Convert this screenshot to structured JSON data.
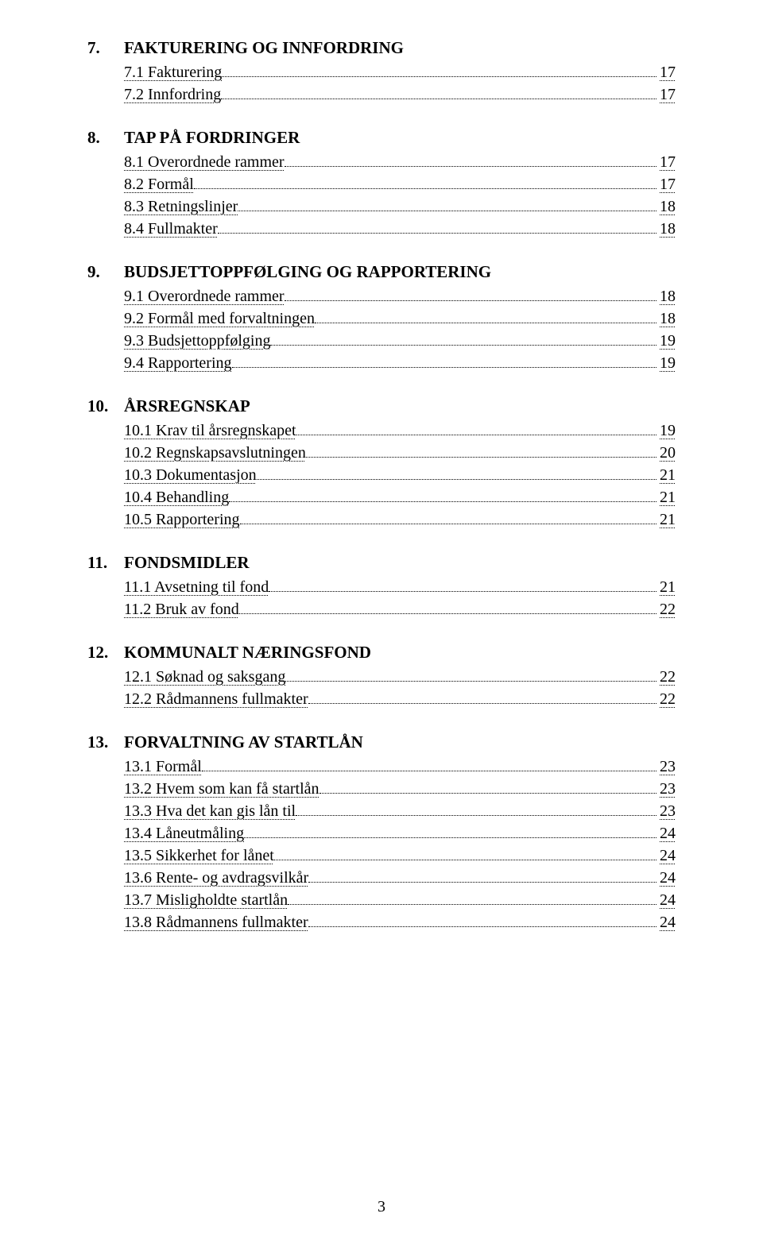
{
  "page_number": "3",
  "colors": {
    "background": "#ffffff",
    "text": "#000000",
    "leader": "#000000"
  },
  "typography": {
    "font_family": "Times New Roman",
    "heading_size_pt": 16,
    "entry_size_pt": 15,
    "heading_weight": "bold"
  },
  "sections": [
    {
      "num": "7.",
      "title": "FAKTURERING OG INNFORDRING",
      "entries": [
        {
          "label": "7.1 Fakturering",
          "page": "17"
        },
        {
          "label": "7.2 Innfordring",
          "page": "17"
        }
      ]
    },
    {
      "num": "8.",
      "title": "TAP PÅ FORDRINGER",
      "entries": [
        {
          "label": "8.1 Overordnede rammer",
          "page": "17"
        },
        {
          "label": "8.2 Formål",
          "page": "17"
        },
        {
          "label": "8.3 Retningslinjer",
          "page": "18"
        },
        {
          "label": "8.4 Fullmakter",
          "page": "18"
        }
      ]
    },
    {
      "num": "9.",
      "title": "BUDSJETTOPPFØLGING OG RAPPORTERING",
      "entries": [
        {
          "label": "9.1 Overordnede rammer",
          "page": "18"
        },
        {
          "label": "9.2 Formål med forvaltningen",
          "page": "18"
        },
        {
          "label": "9.3 Budsjettoppfølging",
          "page": "19"
        },
        {
          "label": "9.4 Rapportering",
          "page": "19"
        }
      ]
    },
    {
      "num": "10.",
      "title": "ÅRSREGNSKAP",
      "entries": [
        {
          "label": "10.1 Krav til årsregnskapet",
          "page": "19"
        },
        {
          "label": "10.2 Regnskapsavslutningen",
          "page": "20"
        },
        {
          "label": "10.3 Dokumentasjon",
          "page": "21"
        },
        {
          "label": "10.4 Behandling",
          "page": "21"
        },
        {
          "label": "10.5 Rapportering",
          "page": "21"
        }
      ]
    },
    {
      "num": "11.",
      "title": "FONDSMIDLER",
      "entries": [
        {
          "label": "11.1 Avsetning til fond",
          "page": "21"
        },
        {
          "label": "11.2 Bruk av fond",
          "page": "22"
        }
      ]
    },
    {
      "num": "12.",
      "title": "KOMMUNALT NÆRINGSFOND",
      "entries": [
        {
          "label": "12.1 Søknad og saksgang",
          "page": "22"
        },
        {
          "label": "12.2 Rådmannens fullmakter",
          "page": "22"
        }
      ]
    },
    {
      "num": "13.",
      "title": "FORVALTNING AV STARTLÅN",
      "entries": [
        {
          "label": "13.1 Formål",
          "page": "23"
        },
        {
          "label": "13.2 Hvem som kan få startlån",
          "page": "23"
        },
        {
          "label": "13.3 Hva det kan gis lån til",
          "page": "23"
        },
        {
          "label": "13.4 Låneutmåling",
          "page": "24"
        },
        {
          "label": "13.5 Sikkerhet for lånet",
          "page": "24"
        },
        {
          "label": "13.6 Rente- og avdragsvilkår",
          "page": "24"
        },
        {
          "label": "13.7 Misligholdte startlån",
          "page": "24"
        },
        {
          "label": "13.8  Rådmannens fullmakter",
          "page": "24"
        }
      ]
    }
  ]
}
